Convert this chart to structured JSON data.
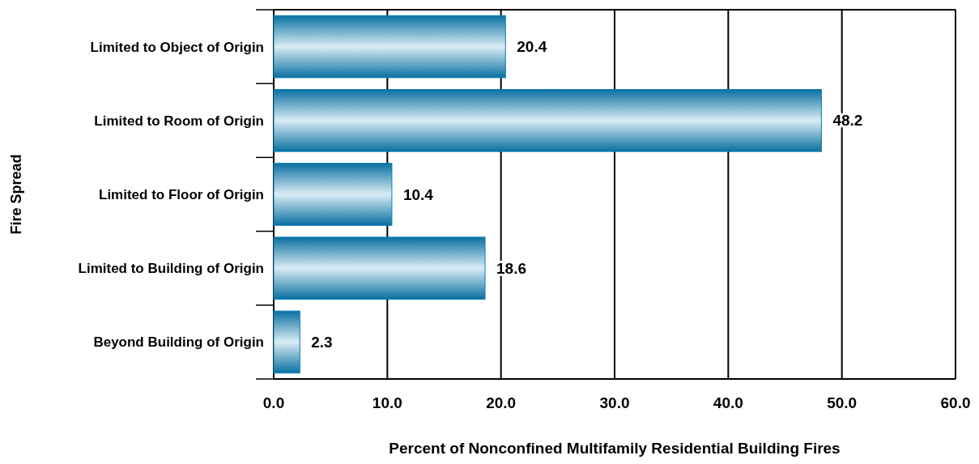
{
  "chart_data": {
    "type": "bar",
    "orientation": "horizontal",
    "ylabel": "Fire Spread",
    "xlabel": "Percent of Nonconfined Multifamily Residential Building Fires",
    "categories": [
      "Limited to Object of Origin",
      "Limited to Room of Origin",
      "Limited to Floor of Origin",
      "Limited to Building of Origin",
      "Beyond Building of Origin"
    ],
    "values": [
      20.4,
      48.2,
      10.4,
      18.6,
      2.3
    ],
    "color": "#0a7db3",
    "xlim": [
      0,
      60
    ],
    "xticks": [
      {
        "value": 0,
        "label": "0.0"
      },
      {
        "value": 10,
        "label": "10.0"
      },
      {
        "value": 20,
        "label": "20.0"
      },
      {
        "value": 30,
        "label": "30.0"
      },
      {
        "value": 40,
        "label": "40.0"
      },
      {
        "value": 50,
        "label": "50.0"
      },
      {
        "value": 60,
        "label": "60.0"
      }
    ],
    "grid": "x",
    "data_labels": true
  }
}
